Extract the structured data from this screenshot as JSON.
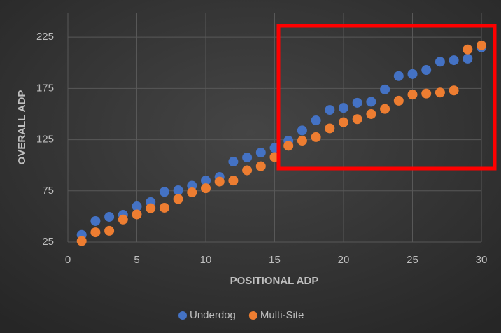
{
  "chart_data": {
    "type": "scatter",
    "x_label": "POSITIONAL ADP",
    "y_label": "OVERALL ADP",
    "xlim": [
      0,
      30
    ],
    "xticks": [
      0,
      5,
      10,
      15,
      20,
      25,
      30
    ],
    "ylim": [
      25,
      249
    ],
    "yticks": [
      25,
      75,
      125,
      175,
      225
    ],
    "grid": true,
    "legend": "bottom",
    "series": [
      {
        "name": "Underdog",
        "color": "#4472c4",
        "x": [
          1,
          2,
          3,
          4,
          5,
          6,
          7,
          8,
          9,
          10,
          11,
          12,
          13,
          14,
          15,
          16,
          17,
          18,
          19,
          20,
          21,
          22,
          23,
          24,
          25,
          26,
          27,
          28,
          29,
          30
        ],
        "values": [
          32,
          45.5,
          49.6,
          51.6,
          59.8,
          64,
          74,
          75.5,
          80,
          85,
          88.5,
          103.5,
          107.6,
          112.4,
          117,
          124,
          134,
          143.8,
          154,
          156,
          161,
          162,
          174,
          187,
          189,
          193,
          201,
          202.5,
          204,
          215
        ]
      },
      {
        "name": "Multi-Site",
        "color": "#ed7d31",
        "x": [
          1,
          2,
          3,
          4,
          5,
          6,
          7,
          8,
          9,
          10,
          11,
          12,
          13,
          14,
          15,
          16,
          17,
          18,
          19,
          20,
          21,
          22,
          23,
          24,
          25,
          26,
          27,
          28,
          29,
          30
        ],
        "values": [
          26,
          34.5,
          36,
          47,
          52,
          58,
          58.5,
          67,
          73.5,
          77.5,
          84,
          85,
          95,
          99,
          108,
          119,
          124,
          127.5,
          136,
          142,
          145,
          150,
          155,
          163,
          169,
          170,
          171,
          173,
          213,
          217
        ]
      }
    ]
  }
}
